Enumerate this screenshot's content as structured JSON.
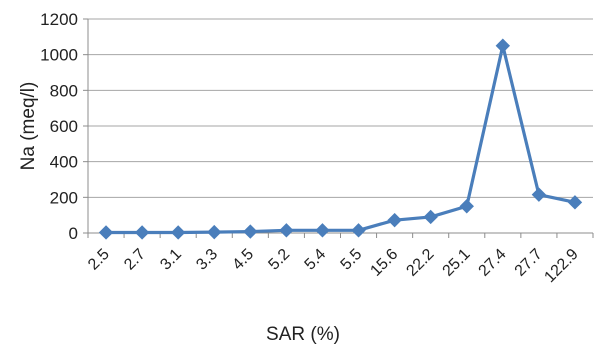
{
  "chart_data": {
    "type": "line",
    "categories": [
      "2.5",
      "2.7",
      "3.1",
      "3.3",
      "4.5",
      "5.2",
      "5.4",
      "5.5",
      "15.6",
      "22.2",
      "25.1",
      "27.4",
      "27.7",
      "122.9"
    ],
    "series": [
      {
        "values": [
          3,
          3,
          3,
          5,
          8,
          15,
          15,
          15,
          72,
          90,
          150,
          1050,
          215,
          172
        ]
      }
    ],
    "xlabel": "SAR (%)",
    "ylabel": "Na (meq/l)",
    "ylim": [
      0,
      1200
    ],
    "yticks": [
      0,
      200,
      400,
      600,
      800,
      1000,
      1200
    ],
    "grid": true,
    "legend": "none",
    "color": "#4a7ebb",
    "marker": "diamond"
  }
}
